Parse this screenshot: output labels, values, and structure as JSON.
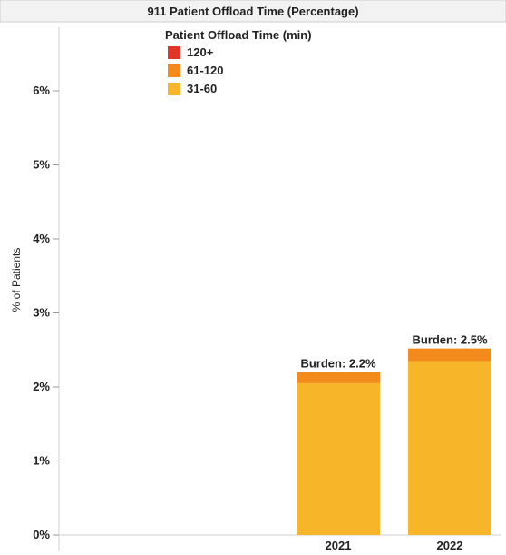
{
  "chart_data": {
    "type": "bar",
    "stacked": true,
    "title": "911 Patient Offload Time (Percentage)",
    "xlabel": "",
    "ylabel": "% of Patients",
    "categories": [
      "2021",
      "2022"
    ],
    "series": [
      {
        "name": "31-60",
        "color": "#F7B52A",
        "values": [
          2.05,
          2.35
        ]
      },
      {
        "name": "61-120",
        "color": "#F28A1C",
        "values": [
          0.15,
          0.17
        ]
      },
      {
        "name": "120+",
        "color": "#E0362A",
        "values": [
          0.0,
          0.0
        ]
      }
    ],
    "bar_labels": [
      "Burden: 2.2%",
      "Burden: 2.5%"
    ],
    "legend": {
      "title": "Patient Offload Time (min)",
      "items": [
        "120+",
        "61-120",
        "31-60"
      ],
      "position": "top-left"
    },
    "ylim": [
      0,
      6.8
    ],
    "yticks": [
      0,
      1,
      2,
      3,
      4,
      5,
      6
    ],
    "ytick_labels": [
      "0%",
      "1%",
      "2%",
      "3%",
      "4%",
      "5%",
      "6%"
    ],
    "grid": false
  }
}
